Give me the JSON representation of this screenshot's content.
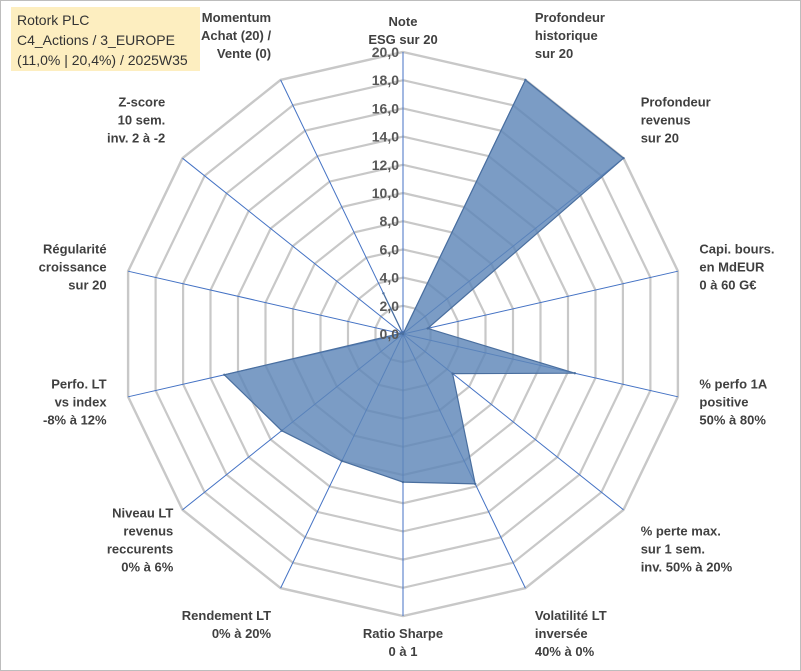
{
  "info": {
    "line1": "Rotork PLC",
    "line2": "C4_Actions / 3_EUROPE",
    "line3": "(11,0% | 20,4%) / 2025W35"
  },
  "chart_data": {
    "type": "radar",
    "title": "",
    "range": [
      0,
      20
    ],
    "tick_step": 2,
    "tick_labels": [
      "0,0",
      "2,0",
      "4,0",
      "6,0",
      "8,0",
      "10,0",
      "12,0",
      "14,0",
      "16,0",
      "18,0",
      "20,0"
    ],
    "axes": [
      [
        "Note",
        "ESG sur 20"
      ],
      [
        "Profondeur",
        "historique",
        "sur 20"
      ],
      [
        "Profondeur",
        "revenus",
        "sur 20"
      ],
      [
        "Capi. bours.",
        "en MdEUR",
        "0 à 60 G€"
      ],
      [
        "% perfo 1A",
        "positive",
        "50% à 80%"
      ],
      [
        "% perte max.",
        "sur 1 sem.",
        "inv. 50% à 20%"
      ],
      [
        "Volatilité LT",
        "inversée",
        "40% à 0%"
      ],
      [
        "Ratio Sharpe",
        "0 à 1"
      ],
      [
        "Rendement LT",
        "0% à 20%"
      ],
      [
        "Niveau LT",
        "revenus",
        "reccurents",
        "0% à 6%"
      ],
      [
        "Perfo. LT",
        "vs index",
        "-8% à 12%"
      ],
      [
        "Régularité",
        "croissance",
        "sur 20"
      ],
      [
        "Z-score",
        "10 sem.",
        "inv. 2 à -2"
      ],
      [
        "Momentum",
        "Achat (20) /",
        "Vente (0)"
      ]
    ],
    "series": [
      {
        "values": [
          0.0,
          20.0,
          20.0,
          1.8,
          12.5,
          4.5,
          11.8,
          10.5,
          10.0,
          11.0,
          13.0,
          0.2,
          0.0,
          3.2
        ]
      }
    ],
    "colors": {
      "fill": "#5e86b8",
      "fill_opacity": 0.82,
      "stroke": "#4a6f9f",
      "grid": "#c8c8c8",
      "spokes": "#4472c4"
    },
    "grid": true,
    "legend": "none"
  }
}
